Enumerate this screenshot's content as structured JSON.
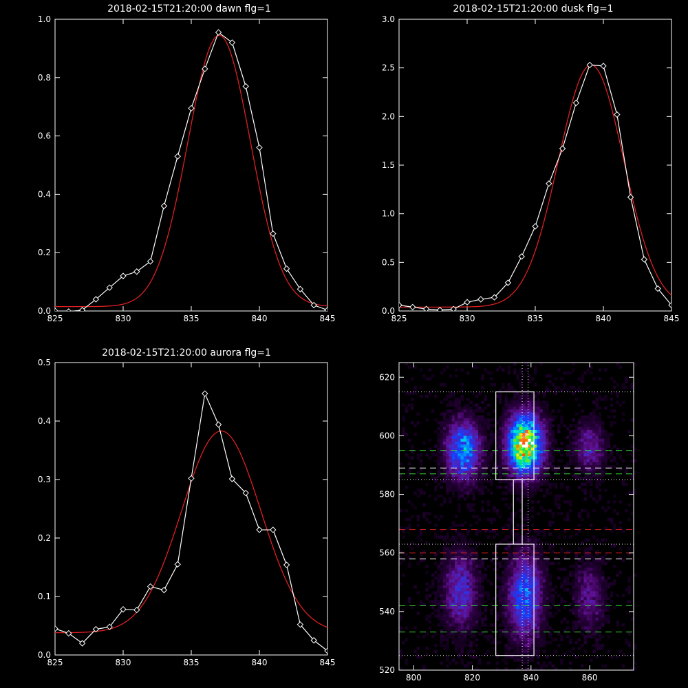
{
  "chart_data": [
    {
      "type": "line",
      "title": "2018-02-15T21:20:00 dawn flg=1",
      "xlim": [
        825,
        845
      ],
      "ylim": [
        0,
        1.0
      ],
      "xticks": [
        "825",
        "830",
        "835",
        "840",
        "845"
      ],
      "yticks": [
        "0.0",
        "0.2",
        "0.4",
        "0.6",
        "0.8",
        "1.0"
      ],
      "series": [
        {
          "kind": "observed",
          "color": "#ffffff",
          "markers": "diamond",
          "x": [
            825,
            826,
            827,
            828,
            829,
            830,
            831,
            832,
            833,
            834,
            835,
            836,
            837,
            838,
            839,
            840,
            841,
            842,
            843,
            844,
            845
          ],
          "y": [
            0.0,
            -0.002,
            0.003,
            0.04,
            0.08,
            0.12,
            0.135,
            0.17,
            0.36,
            0.53,
            0.695,
            0.83,
            0.955,
            0.92,
            0.77,
            0.56,
            0.265,
            0.145,
            0.075,
            0.02,
            0.003
          ]
        },
        {
          "kind": "fit",
          "color": "#e02020",
          "gauss": {
            "a": 0.93,
            "mu": 837.05,
            "sigma": 2.3,
            "c": 0.015
          }
        }
      ]
    },
    {
      "type": "line",
      "title": "2018-02-15T21:20:00 dusk flg=1",
      "xlim": [
        825,
        845
      ],
      "ylim": [
        0,
        3.0
      ],
      "xticks": [
        "825",
        "830",
        "835",
        "840",
        "845"
      ],
      "yticks": [
        "0.0",
        "0.5",
        "1.0",
        "1.5",
        "2.0",
        "2.5",
        "3.0"
      ],
      "series": [
        {
          "kind": "observed",
          "color": "#ffffff",
          "markers": "diamond",
          "x": [
            825,
            826,
            827,
            828,
            829,
            830,
            831,
            832,
            833,
            834,
            835,
            836,
            837,
            838,
            839,
            840,
            841,
            842,
            843,
            844,
            845
          ],
          "y": [
            0.06,
            0.04,
            0.02,
            0.01,
            0.02,
            0.09,
            0.12,
            0.14,
            0.29,
            0.56,
            0.87,
            1.31,
            1.67,
            2.14,
            2.53,
            2.52,
            2.02,
            1.17,
            0.53,
            0.23,
            0.06
          ]
        },
        {
          "kind": "fit",
          "color": "#e02020",
          "gauss": {
            "a": 2.49,
            "mu": 839.1,
            "sigma": 2.4,
            "c": 0.04
          }
        }
      ]
    },
    {
      "type": "line",
      "title": "2018-02-15T21:20:00 aurora flg=1",
      "xlim": [
        825,
        845
      ],
      "ylim": [
        0,
        0.5
      ],
      "xticks": [
        "825",
        "830",
        "835",
        "840",
        "845"
      ],
      "yticks": [
        "0.0",
        "0.1",
        "0.2",
        "0.3",
        "0.4",
        "0.5"
      ],
      "series": [
        {
          "kind": "observed",
          "color": "#ffffff",
          "markers": "diamond",
          "x": [
            825,
            826,
            827,
            828,
            829,
            830,
            831,
            832,
            833,
            834,
            835,
            836,
            837,
            838,
            839,
            840,
            841,
            842,
            843,
            844,
            845
          ],
          "y": [
            0.045,
            0.037,
            0.02,
            0.044,
            0.048,
            0.078,
            0.077,
            0.117,
            0.111,
            0.155,
            0.302,
            0.447,
            0.394,
            0.301,
            0.277,
            0.214,
            0.214,
            0.154,
            0.052,
            0.025,
            0.007
          ]
        },
        {
          "kind": "fit",
          "color": "#e02020",
          "gauss": {
            "a": 0.345,
            "mu": 837.2,
            "sigma": 2.9,
            "c": 0.038
          }
        }
      ]
    },
    {
      "type": "heatmap",
      "xlim": [
        795,
        875
      ],
      "ylim": [
        520,
        625
      ],
      "xticks": [
        "800",
        "820",
        "840",
        "860"
      ],
      "yticks": [
        "520",
        "540",
        "560",
        "580",
        "600",
        "620"
      ],
      "blobs": [
        {
          "x": 817,
          "y": 595,
          "sx": 4,
          "sy": 7,
          "amp": 0.5
        },
        {
          "x": 838,
          "y": 597,
          "sx": 4,
          "sy": 7,
          "amp": 0.92
        },
        {
          "x": 860,
          "y": 596,
          "sx": 3.5,
          "sy": 6,
          "amp": 0.24
        },
        {
          "x": 816,
          "y": 547,
          "sx": 4,
          "sy": 9,
          "amp": 0.3
        },
        {
          "x": 838,
          "y": 545,
          "sx": 4,
          "sy": 10,
          "amp": 0.42
        },
        {
          "x": 860,
          "y": 545,
          "sx": 3.5,
          "sy": 8,
          "amp": 0.2
        }
      ],
      "boxes": [
        {
          "x": [
            828,
            841
          ],
          "y": [
            585,
            615
          ]
        },
        {
          "x": [
            828,
            841
          ],
          "y": [
            525,
            563
          ]
        }
      ],
      "connector": {
        "x": [
          834,
          837
        ],
        "y": [
          563,
          585
        ]
      },
      "dotted_h": [
        {
          "y": 615,
          "color": "#ffffff"
        },
        {
          "y": 585,
          "color": "#ffffff"
        },
        {
          "y": 563,
          "color": "#ffffff"
        },
        {
          "y": 525,
          "color": "#ffffff"
        }
      ],
      "dotted_v": [
        {
          "x": 837,
          "color": "#ffffff"
        },
        {
          "x": 839,
          "color": "#ffffff"
        }
      ],
      "dashed_h": [
        {
          "y": 595,
          "color": "#33dd33"
        },
        {
          "y": 589,
          "color": "#ffffff"
        },
        {
          "y": 587,
          "color": "#33dd33"
        },
        {
          "y": 568,
          "color": "#e02020"
        },
        {
          "y": 560,
          "color": "#e02020"
        },
        {
          "y": 558,
          "color": "#ffffff"
        },
        {
          "y": 542,
          "color": "#33dd33"
        },
        {
          "y": 533,
          "color": "#33dd33"
        }
      ]
    }
  ]
}
